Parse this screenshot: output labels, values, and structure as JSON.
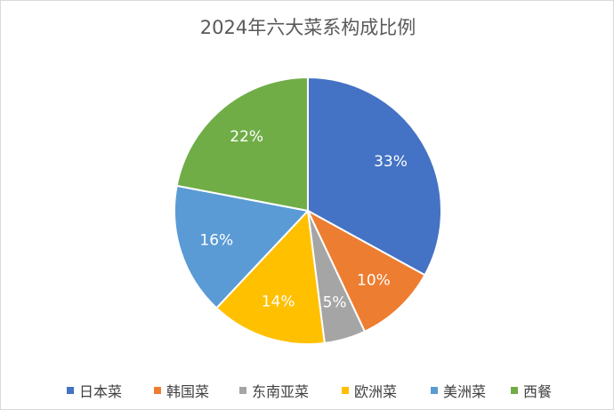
{
  "chart_data": {
    "type": "pie",
    "title": "2024年六大菜系构成比例",
    "categories": [
      "日本菜",
      "韩国菜",
      "东南亚菜",
      "欧洲菜",
      "美洲菜",
      "西餐"
    ],
    "values": [
      33,
      10,
      5,
      14,
      16,
      22
    ],
    "value_labels": [
      "33%",
      "10%",
      "5%",
      "14%",
      "16%",
      "22%"
    ],
    "colors": [
      "#4472C4",
      "#ED7D31",
      "#A5A5A5",
      "#FFC000",
      "#5B9BD5",
      "#70AD47"
    ],
    "legend_position": "bottom",
    "start_angle_deg": 0,
    "direction": "clockwise"
  }
}
